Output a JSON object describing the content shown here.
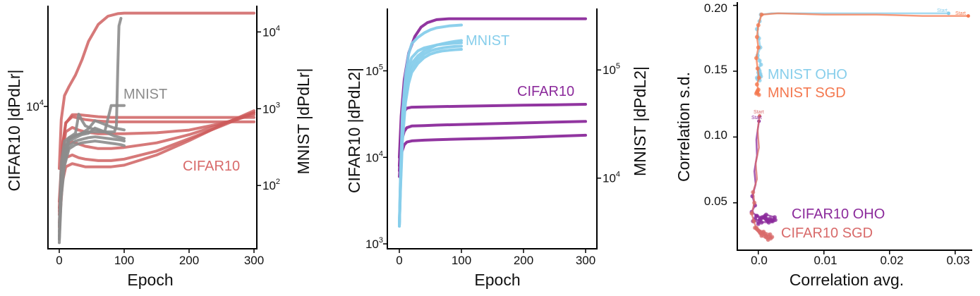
{
  "colors": {
    "cifar_red": "#cd5c5c",
    "mnist_gray": "#8c8c8c",
    "cifar_purple": "#8b2a9b",
    "mnist_blue": "#87ceeb",
    "sgd_orange": "#f4784f",
    "sgd_rose": "#d86a6a"
  },
  "chart_data": [
    {
      "type": "line",
      "xlabel": "Epoch",
      "ylabel": "CIFAR10 |dPdLr|",
      "ylabel_right": "MNIST |dPdLr|",
      "xlim": [
        0,
        300
      ],
      "xticks": [
        "0",
        "100",
        "200",
        "300"
      ],
      "yscale": "log",
      "ylim": [
        900,
        55000
      ],
      "ylim_right": [
        15,
        22000
      ],
      "yticks_left": [
        {
          "value": 10000,
          "label": "10^4"
        }
      ],
      "yticks_right": [
        {
          "value": 100,
          "label": "10^2"
        },
        {
          "value": 1000,
          "label": "10^3"
        },
        {
          "value": 10000,
          "label": "10^4"
        }
      ],
      "annotations": [
        "MNIST",
        "CIFAR10"
      ],
      "series": [
        {
          "group": "CIFAR10",
          "axis": "left",
          "x": [
            0,
            3,
            8,
            15,
            25,
            35,
            45,
            60,
            75,
            90,
            100,
            150,
            200,
            250,
            300
          ],
          "y": [
            3500,
            8000,
            12000,
            14000,
            17000,
            22000,
            30000,
            40000,
            46000,
            48000,
            48500,
            48500,
            48500,
            48500,
            48500
          ]
        },
        {
          "group": "CIFAR10",
          "axis": "left",
          "x": [
            0,
            5,
            10,
            20,
            30,
            40,
            60,
            80,
            100,
            150,
            200,
            250,
            300
          ],
          "y": [
            1800,
            5000,
            7500,
            8700,
            8700,
            8600,
            8400,
            8300,
            8300,
            8300,
            8300,
            8300,
            8300
          ]
        },
        {
          "group": "CIFAR10",
          "axis": "left",
          "x": [
            0,
            5,
            10,
            20,
            30,
            40,
            60,
            80,
            100,
            150,
            200,
            250,
            300
          ],
          "y": [
            2000,
            5200,
            7600,
            8400,
            8200,
            8000,
            7800,
            7700,
            7700,
            7700,
            7700,
            7700,
            7700
          ]
        },
        {
          "group": "CIFAR10",
          "axis": "left",
          "x": [
            0,
            5,
            10,
            20,
            30,
            40,
            60,
            80,
            100,
            150,
            200,
            250,
            300
          ],
          "y": [
            1600,
            4500,
            6500,
            7000,
            6700,
            6500,
            6300,
            6300,
            6300,
            6400,
            6700,
            7500,
            8700
          ]
        },
        {
          "group": "CIFAR10",
          "axis": "left",
          "x": [
            0,
            5,
            10,
            20,
            30,
            40,
            60,
            80,
            100,
            150,
            200,
            250,
            300
          ],
          "y": [
            1700,
            4000,
            5200,
            5500,
            5300,
            5100,
            4900,
            4900,
            5000,
            5400,
            6200,
            7400,
            9000
          ]
        },
        {
          "group": "CIFAR10",
          "axis": "left",
          "x": [
            0,
            5,
            10,
            20,
            30,
            40,
            60,
            80,
            100,
            150,
            200,
            250,
            300
          ],
          "y": [
            1400,
            3300,
            4200,
            4400,
            4200,
            4100,
            4000,
            4000,
            4100,
            4700,
            5800,
            7200,
            9000
          ]
        },
        {
          "group": "CIFAR10",
          "axis": "left",
          "x": [
            0,
            5,
            10,
            20,
            30,
            40,
            60,
            80,
            100,
            150,
            200,
            250,
            300
          ],
          "y": [
            1300,
            2800,
            3600,
            3800,
            3700,
            3600,
            3600,
            3600,
            3700,
            4400,
            5600,
            7300,
            9300
          ]
        },
        {
          "group": "MNIST",
          "axis": "right",
          "x": [
            0,
            3,
            8,
            15,
            25,
            35,
            45,
            55,
            65,
            75,
            85,
            88,
            90,
            92,
            95
          ],
          "y": [
            30,
            200,
            380,
            420,
            450,
            480,
            500,
            500,
            500,
            500,
            500,
            600,
            3000,
            12000,
            15000
          ]
        },
        {
          "group": "MNIST",
          "axis": "right",
          "x": [
            0,
            3,
            8,
            15,
            25,
            30,
            35,
            40,
            50,
            60,
            70,
            80,
            85,
            90,
            95,
            100
          ],
          "y": [
            20,
            120,
            300,
            420,
            480,
            850,
            700,
            600,
            550,
            520,
            500,
            1100,
            1100,
            1100,
            1100,
            1100
          ]
        },
        {
          "group": "MNIST",
          "axis": "right",
          "x": [
            0,
            3,
            8,
            15,
            25,
            35,
            45,
            55,
            65,
            75,
            85,
            95,
            100
          ],
          "y": [
            25,
            100,
            250,
            400,
            450,
            480,
            550,
            700,
            650,
            600,
            560,
            540,
            530
          ]
        },
        {
          "group": "MNIST",
          "axis": "right",
          "x": [
            0,
            3,
            8,
            15,
            25,
            35,
            45,
            55,
            65,
            75,
            85,
            95,
            100
          ],
          "y": [
            22,
            90,
            230,
            380,
            420,
            460,
            480,
            560,
            520,
            480,
            440,
            420,
            410
          ]
        },
        {
          "group": "MNIST",
          "axis": "right",
          "x": [
            0,
            3,
            8,
            15,
            25,
            35,
            45,
            55,
            65,
            75,
            85,
            95,
            100
          ],
          "y": [
            20,
            80,
            200,
            330,
            380,
            400,
            420,
            430,
            420,
            410,
            400,
            390,
            380
          ]
        },
        {
          "group": "MNIST",
          "axis": "right",
          "x": [
            0,
            3,
            8,
            15,
            25,
            35,
            45,
            55,
            65,
            75,
            85,
            95,
            100
          ],
          "y": [
            18,
            70,
            180,
            300,
            340,
            360,
            370,
            380,
            370,
            360,
            350,
            340,
            330
          ]
        }
      ]
    },
    {
      "type": "line",
      "xlabel": "Epoch",
      "ylabel": "CIFAR10 |dPdL2|",
      "ylabel_right": "MNIST |dPdL2|",
      "xlim": [
        0,
        300
      ],
      "xticks": [
        "0",
        "100",
        "200",
        "300"
      ],
      "yscale": "log",
      "ylim": [
        1000,
        470000
      ],
      "ylim_right": [
        3000,
        300000
      ],
      "yticks_left": [
        {
          "value": 1000,
          "label": "10^3"
        },
        {
          "value": 10000,
          "label": "10^4"
        },
        {
          "value": 100000,
          "label": "10^5"
        }
      ],
      "yticks_right": [
        {
          "value": 10000,
          "label": "10^4"
        },
        {
          "value": 100000,
          "label": "10^5"
        }
      ],
      "annotations": [
        "MNIST",
        "CIFAR10"
      ],
      "series": [
        {
          "group": "CIFAR10",
          "axis": "left",
          "x": [
            0,
            3,
            8,
            15,
            25,
            35,
            45,
            60,
            80,
            100,
            150,
            200,
            250,
            300
          ],
          "y": [
            10000,
            30000,
            80000,
            160000,
            250000,
            320000,
            360000,
            390000,
            400000,
            400000,
            400000,
            400000,
            400000,
            400000
          ]
        },
        {
          "group": "CIFAR10",
          "axis": "left",
          "x": [
            0,
            3,
            8,
            12,
            20,
            40,
            60,
            100,
            150,
            200,
            250,
            300
          ],
          "y": [
            8000,
            20000,
            34000,
            37000,
            38000,
            38200,
            38500,
            39000,
            39500,
            40000,
            40500,
            41000
          ]
        },
        {
          "group": "CIFAR10",
          "axis": "left",
          "x": [
            0,
            3,
            8,
            12,
            20,
            40,
            60,
            100,
            150,
            200,
            250,
            300
          ],
          "y": [
            7000,
            15000,
            20000,
            22000,
            23000,
            23300,
            23600,
            24000,
            24500,
            25000,
            25500,
            26000
          ]
        },
        {
          "group": "CIFAR10",
          "axis": "left",
          "x": [
            0,
            3,
            8,
            12,
            20,
            40,
            60,
            100,
            150,
            200,
            250,
            300
          ],
          "y": [
            6000,
            11000,
            14000,
            15000,
            15500,
            15800,
            16000,
            16300,
            16600,
            17000,
            17500,
            18000
          ]
        },
        {
          "group": "MNIST",
          "axis": "right",
          "x": [
            0,
            2,
            5,
            10,
            15,
            20,
            30,
            40,
            50,
            60,
            70,
            80,
            90,
            100
          ],
          "y": [
            3600,
            12000,
            40000,
            90000,
            140000,
            175000,
            200000,
            220000,
            235000,
            245000,
            250000,
            255000,
            258000,
            260000
          ]
        },
        {
          "group": "MNIST",
          "axis": "right",
          "x": [
            0,
            2,
            5,
            10,
            15,
            20,
            30,
            40,
            50,
            60,
            70,
            80,
            90,
            100
          ],
          "y": [
            3600,
            11000,
            35000,
            75000,
            110000,
            130000,
            150000,
            160000,
            165000,
            170000,
            173000,
            175000,
            177000,
            178000
          ]
        },
        {
          "group": "MNIST",
          "axis": "right",
          "x": [
            0,
            2,
            5,
            10,
            15,
            20,
            30,
            40,
            50,
            60,
            70,
            80,
            90,
            100
          ],
          "y": [
            3600,
            10000,
            30000,
            65000,
            95000,
            115000,
            135000,
            150000,
            160000,
            170000,
            175000,
            180000,
            184000,
            187000
          ]
        },
        {
          "group": "MNIST",
          "axis": "right",
          "x": [
            0,
            2,
            5,
            10,
            15,
            20,
            30,
            40,
            50,
            60,
            70,
            80,
            90,
            100
          ],
          "y": [
            3600,
            9000,
            26000,
            55000,
            85000,
            105000,
            125000,
            140000,
            150000,
            156000,
            160000,
            163000,
            165000,
            166000
          ]
        },
        {
          "group": "MNIST",
          "axis": "right",
          "x": [
            0,
            2,
            5,
            10,
            15,
            20,
            30,
            40,
            50,
            60,
            70,
            80,
            90,
            100
          ],
          "y": [
            3600,
            8500,
            22000,
            50000,
            75000,
            95000,
            115000,
            130000,
            140000,
            146000,
            150000,
            152000,
            154000,
            155000
          ]
        }
      ]
    },
    {
      "type": "scatter",
      "xlabel": "Correlation avg.",
      "ylabel": "Correlation s.d.",
      "xlim": [
        -0.0032,
        0.0326
      ],
      "ylim": [
        0.014,
        0.2025
      ],
      "xticks": [
        "0.0",
        "0.01",
        "0.02",
        "0.03"
      ],
      "yticks": [
        "0.05",
        "0.10",
        "0.15",
        "0.20"
      ],
      "annotations": [
        "MNIST OHO",
        "MNIST SGD",
        "CIFAR10 OHO",
        "CIFAR10 SGD",
        "Start"
      ],
      "series": [
        {
          "name": "MNIST OHO",
          "x": [
            0.029,
            0.022,
            0.015,
            0.008,
            0.002,
            0.0004,
            0.0002,
            -0.0002,
            0.0001,
            0.0003,
            -0.0001,
            0.0002,
            0.0004,
            0.0,
            0.0002,
            0.0001,
            -0.0002,
            0.0003,
            0.0001,
            0.0002,
            0.0004,
            0.0,
            -0.0001,
            0.0003
          ],
          "y": [
            0.194,
            0.194,
            0.194,
            0.194,
            0.194,
            0.193,
            0.188,
            0.182,
            0.175,
            0.168,
            0.162,
            0.158,
            0.155,
            0.152,
            0.15,
            0.147,
            0.145,
            0.148,
            0.151,
            0.143,
            0.146,
            0.149,
            0.144,
            0.147
          ]
        },
        {
          "name": "MNIST SGD",
          "x": [
            0.032,
            0.025,
            0.018,
            0.01,
            0.003,
            0.0005,
            0.0,
            -0.0002,
            0.0,
            -0.0003,
            -0.0001,
            0.0001,
            -0.0002,
            0.0,
            -0.0003,
            -0.0001,
            0.0001,
            -0.0002
          ],
          "y": [
            0.192,
            0.192,
            0.193,
            0.193,
            0.194,
            0.193,
            0.185,
            0.176,
            0.168,
            0.16,
            0.152,
            0.145,
            0.14,
            0.136,
            0.133,
            0.135,
            0.132,
            0.134
          ]
        },
        {
          "name": "CIFAR10 OHO",
          "x": [
            0.0001,
            -0.0003,
            -0.0002,
            -0.0006,
            -0.0004,
            -0.0009,
            -0.0005,
            -0.001,
            -0.0002,
            0.0003,
            0.0008,
            0.0013,
            0.0018,
            0.0022,
            0.0026,
            0.0015,
            0.0005,
            -0.0005,
            0.0,
            0.001,
            0.002,
            0.0025,
            0.0012,
            0.0002,
            -0.0008,
            0.0016,
            0.0006,
            -0.0003,
            0.0021,
            0.0011
          ],
          "y": [
            0.112,
            0.098,
            0.086,
            0.074,
            0.064,
            0.055,
            0.048,
            0.043,
            0.04,
            0.038,
            0.039,
            0.037,
            0.038,
            0.036,
            0.037,
            0.036,
            0.035,
            0.038,
            0.034,
            0.04,
            0.036,
            0.039,
            0.041,
            0.037,
            0.036,
            0.035,
            0.039,
            0.04,
            0.037,
            0.038
          ]
        },
        {
          "name": "CIFAR10 SGD",
          "x": [
            0.0002,
            -0.0001,
            0.0001,
            -0.0004,
            -0.0002,
            -0.0008,
            -0.0006,
            -0.001,
            -0.0007,
            -0.0003,
            0.0002,
            0.0007,
            0.0012,
            0.0016,
            0.0019,
            0.0021,
            0.001,
            0.0,
            -0.0005,
            0.0005,
            0.0015,
            0.0018,
            0.0008,
            -0.0002,
            0.0012,
            0.0003
          ],
          "y": [
            0.116,
            0.105,
            0.092,
            0.08,
            0.068,
            0.058,
            0.05,
            0.042,
            0.036,
            0.031,
            0.028,
            0.027,
            0.025,
            0.024,
            0.023,
            0.024,
            0.026,
            0.029,
            0.031,
            0.025,
            0.022,
            0.026,
            0.028,
            0.03,
            0.024,
            0.027
          ]
        }
      ]
    }
  ]
}
